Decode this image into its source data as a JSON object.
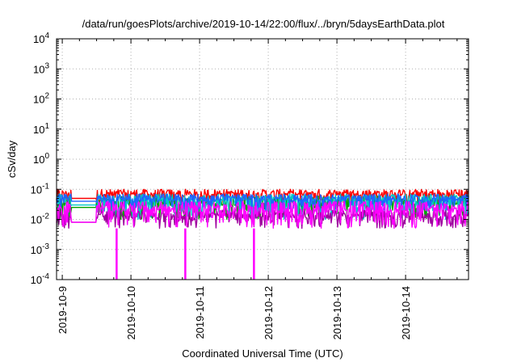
{
  "chart_data": {
    "type": "line",
    "title": "/data/run/goesPlots/archive/2019-10-14/22:00/flux/../bryn/5daysEarthData.plot",
    "xlabel": "Coordinated Universal Time (UTC)",
    "ylabel": "cSv/day",
    "y_scale": "log",
    "ylim": [
      0.0001,
      10000
    ],
    "xlim": [
      "2019-10-08T22:00",
      "2019-10-14T22:00"
    ],
    "x_ticks": [
      "2019-10-9",
      "2019-10-10",
      "2019-10-11",
      "2019-10-12",
      "2019-10-13",
      "2019-10-14"
    ],
    "y_ticks": [
      {
        "base": "10",
        "exp": "-4",
        "value": 0.0001
      },
      {
        "base": "10",
        "exp": "-3",
        "value": 0.001
      },
      {
        "base": "10",
        "exp": "-2",
        "value": 0.01
      },
      {
        "base": "10",
        "exp": "-1",
        "value": 0.1
      },
      {
        "base": "10",
        "exp": "0",
        "value": 1
      },
      {
        "base": "10",
        "exp": "1",
        "value": 10
      },
      {
        "base": "10",
        "exp": "2",
        "value": 100
      },
      {
        "base": "10",
        "exp": "3",
        "value": 1000
      },
      {
        "base": "10",
        "exp": "4",
        "value": 10000
      }
    ],
    "grid": true,
    "legend": "none",
    "series": [
      {
        "color": "#ff0000",
        "x_start": "2019-10-08T22:00",
        "x_end": "2019-10-14T22:00",
        "typical_range": [
          0.03,
          0.1
        ],
        "baseline": 0.05
      },
      {
        "color": "#00a000",
        "x_start": "2019-10-08T22:00",
        "x_end": "2019-10-14T22:00",
        "typical_range": [
          0.01,
          0.06
        ],
        "baseline": 0.025
      },
      {
        "color": "#00c8c8",
        "x_start": "2019-10-08T22:00",
        "x_end": "2019-10-14T22:00",
        "typical_range": [
          0.01,
          0.07
        ],
        "baseline": 0.03
      },
      {
        "color": "#1e64ff",
        "x_start": "2019-10-08T22:00",
        "x_end": "2019-10-14T22:00",
        "typical_range": [
          0.02,
          0.07
        ],
        "baseline": 0.04
      },
      {
        "color": "#a000a0",
        "x_start": "2019-10-08T22:00",
        "x_end": "2019-10-14T22:00",
        "typical_range": [
          0.005,
          0.02
        ],
        "baseline": 0.008
      },
      {
        "color": "#ff00ff",
        "x_start": "2019-10-08T22:00",
        "x_end": "2019-10-14T22:00",
        "typical_range": [
          0.005,
          0.04
        ],
        "baseline": 0.008,
        "dropouts": [
          "2019-10-09T19:00",
          "2019-10-10T19:00",
          "2019-10-11T19:00"
        ]
      }
    ]
  }
}
